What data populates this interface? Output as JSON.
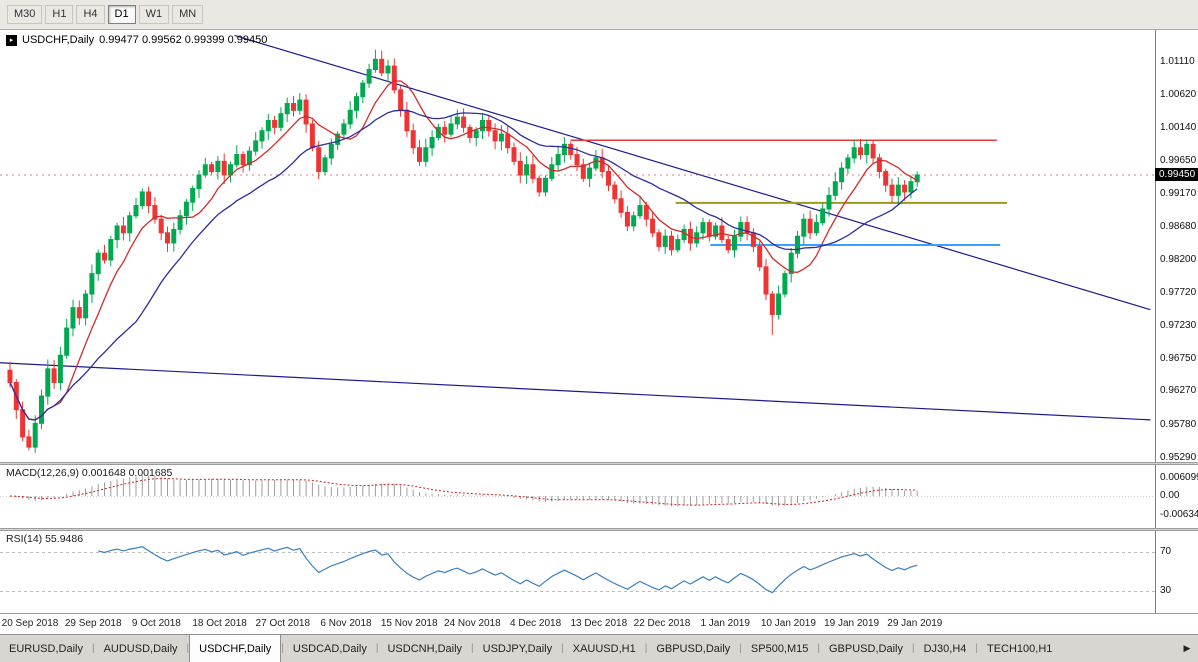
{
  "toolbar": {
    "timeframes": [
      "M30",
      "H1",
      "H4",
      "D1",
      "W1",
      "MN"
    ],
    "active_timeframe": "D1"
  },
  "icons": {
    "chart_marker": "▸",
    "tab_separator": "|",
    "scroll_right": "▶"
  },
  "chart": {
    "symbol_label": "USDCHF,Daily",
    "ohlc_label": "0.99477 0.99562 0.99399 0.99450",
    "current_price": "0.99450",
    "price_axis_labels": [
      "1.01110",
      "1.00620",
      "1.00140",
      "0.99650",
      "0.99170",
      "0.98680",
      "0.98200",
      "0.97720",
      "0.97230",
      "0.96750",
      "0.96270",
      "0.95780",
      "0.95290"
    ]
  },
  "macd_panel": {
    "label": "MACD(12,26,9) 0.001648 0.001685",
    "axis_labels": [
      "0.006099",
      "0.00",
      "-0.006347"
    ]
  },
  "rsi_panel": {
    "label": "RSI(14) 55.9486",
    "axis_labels": [
      "70",
      "30"
    ]
  },
  "date_axis": [
    "20 Sep 2018",
    "29 Sep 2018",
    "9 Oct 2018",
    "18 Oct 2018",
    "27 Oct 2018",
    "6 Nov 2018",
    "15 Nov 2018",
    "24 Nov 2018",
    "4 Dec 2018",
    "13 Dec 2018",
    "22 Dec 2018",
    "1 Jan 2019",
    "10 Jan 2019",
    "19 Jan 2019",
    "29 Jan 2019"
  ],
  "tabs": {
    "items": [
      "EURUSD,Daily",
      "AUDUSD,Daily",
      "USDCHF,Daily",
      "USDCAD,Daily",
      "USDCNH,Daily",
      "USDJPY,Daily",
      "XAUUSD,H1",
      "GBPUSD,Daily",
      "SP500,M15",
      "GBPUSD,Daily",
      "DJ30,H4",
      "TECH100,H1"
    ],
    "active_index": 2
  },
  "chart_data": {
    "type": "candlestick",
    "symbol": "USDCHF",
    "timeframe": "Daily",
    "ohlc_current": {
      "open": 0.99477,
      "high": 0.99562,
      "low": 0.99399,
      "close": 0.9945
    },
    "y_axis": {
      "max": 1.0111,
      "min": 0.9529,
      "step": 0.00485
    },
    "x_ticks": [
      "20 Sep 2018",
      "29 Sep 2018",
      "9 Oct 2018",
      "18 Oct 2018",
      "27 Oct 2018",
      "6 Nov 2018",
      "15 Nov 2018",
      "24 Nov 2018",
      "4 Dec 2018",
      "13 Dec 2018",
      "22 Dec 2018",
      "1 Jan 2019",
      "10 Jan 2019",
      "19 Jan 2019",
      "29 Jan 2019"
    ],
    "closes": [
      0.964,
      0.96,
      0.956,
      0.9545,
      0.958,
      0.962,
      0.966,
      0.964,
      0.968,
      0.972,
      0.975,
      0.9735,
      0.977,
      0.98,
      0.983,
      0.982,
      0.985,
      0.987,
      0.986,
      0.9885,
      0.99,
      0.992,
      0.99,
      0.988,
      0.986,
      0.9845,
      0.9865,
      0.9885,
      0.9905,
      0.9925,
      0.9945,
      0.996,
      0.995,
      0.9965,
      0.9945,
      0.996,
      0.9975,
      0.996,
      0.998,
      0.9995,
      1.001,
      1.0025,
      1.0015,
      1.0035,
      1.005,
      1.004,
      1.0055,
      1.002,
      0.9985,
      0.995,
      0.997,
      0.999,
      1.0005,
      1.002,
      1.004,
      1.006,
      1.008,
      1.01,
      1.0115,
      1.0095,
      1.0105,
      1.007,
      1.004,
      1.001,
      0.9985,
      0.9965,
      0.9985,
      1.0,
      1.0015,
      1.0005,
      1.002,
      1.003,
      1.0015,
      1.0,
      1.001,
      1.0025,
      1.001,
      0.9995,
      1.0005,
      0.9985,
      0.9965,
      0.9945,
      0.996,
      0.994,
      0.992,
      0.994,
      0.996,
      0.9975,
      0.999,
      0.9975,
      0.996,
      0.994,
      0.9955,
      0.997,
      0.995,
      0.993,
      0.991,
      0.989,
      0.987,
      0.9885,
      0.99,
      0.988,
      0.986,
      0.984,
      0.9855,
      0.9835,
      0.985,
      0.9865,
      0.9845,
      0.986,
      0.9875,
      0.9855,
      0.987,
      0.985,
      0.9835,
      0.9855,
      0.9875,
      0.986,
      0.984,
      0.981,
      0.977,
      0.974,
      0.977,
      0.98,
      0.983,
      0.9855,
      0.988,
      0.986,
      0.9875,
      0.9895,
      0.9915,
      0.9935,
      0.9955,
      0.997,
      0.9985,
      0.9975,
      0.999,
      0.997,
      0.995,
      0.993,
      0.9915,
      0.993,
      0.992,
      0.9935,
      0.9945
    ],
    "colors": {
      "up": "#00a94f",
      "down": "#ef3434",
      "ma_fast": "#d42a2a",
      "ma_slow": "#2c2c9e",
      "trendline": "#1b1b8f",
      "hline_red": "#e23b3b",
      "hline_olive": "#9a9a1f",
      "hline_blue": "#3aa0ff",
      "current_price_line": "#d98080",
      "macd_hist": "#9c9c9c",
      "macd_signal": "#cc2222",
      "rsi_line": "#3a7fbf",
      "level_dash": "#bcbcbc"
    },
    "moving_averages": [
      {
        "period": 8,
        "color_key": "ma_fast"
      },
      {
        "period": 21,
        "color_key": "ma_slow"
      }
    ],
    "trendlines": [
      {
        "x1": 0.203,
        "price1": 1.015,
        "x2": 0.996,
        "price2": 0.9747
      },
      {
        "x1": 0.0,
        "price1": 0.9669,
        "x2": 0.996,
        "price2": 0.9585
      }
    ],
    "hlines": [
      {
        "price": 0.9996,
        "x1": 0.494,
        "x2": 0.863,
        "color_key": "hline_red",
        "width": 1.4
      },
      {
        "price": 0.9904,
        "x1": 0.585,
        "x2": 0.872,
        "color_key": "hline_olive",
        "width": 2
      },
      {
        "price": 0.9842,
        "x1": 0.615,
        "x2": 0.866,
        "color_key": "hline_blue",
        "width": 2
      }
    ],
    "indicators": {
      "macd": {
        "fast": 12,
        "slow": 26,
        "signal": 9,
        "value_main": 0.001648,
        "value_signal": 0.001685,
        "axis_max": 0.006099,
        "axis_min": -0.006347
      },
      "rsi": {
        "period": 14,
        "value": 55.9486,
        "levels": [
          70,
          30
        ]
      }
    }
  }
}
